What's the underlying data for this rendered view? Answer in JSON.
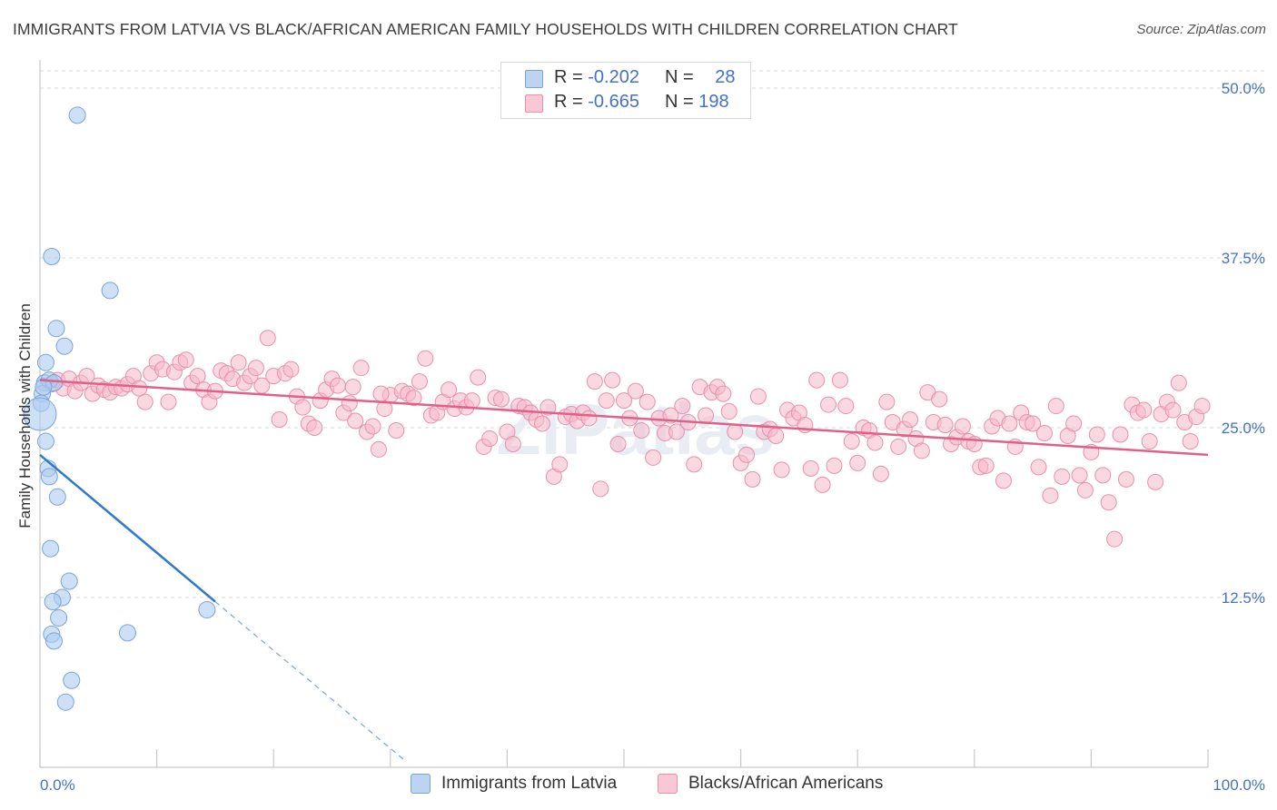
{
  "title": "IMMIGRANTS FROM LATVIA VS BLACK/AFRICAN AMERICAN FAMILY HOUSEHOLDS WITH CHILDREN CORRELATION CHART",
  "source": "Source: ZipAtlas.com",
  "watermark": "ZIPatlas",
  "legend": {
    "rows": [
      {
        "r_label": "R = ",
        "r_value": "-0.202",
        "n_label": "N = ",
        "n_value": "28"
      },
      {
        "r_label": "R = ",
        "r_value": "-0.665",
        "n_label": "N = ",
        "n_value": "198"
      }
    ]
  },
  "bottom_legend": {
    "series1": "Immigrants from Latvia",
    "series2": "Blacks/African Americans"
  },
  "colors": {
    "blue_fill": "#aecbf0",
    "blue_stroke": "#7aa3d8",
    "blue_line": "#2f78d0",
    "pink_fill": "#f6b8cb",
    "pink_stroke": "#e890ab",
    "pink_line": "#e0608a",
    "tick_text": "#4472c4",
    "grid": "#d8d8d8"
  },
  "chart_data": {
    "type": "scatter",
    "title": "IMMIGRANTS FROM LATVIA VS BLACK/AFRICAN AMERICAN FAMILY HOUSEHOLDS WITH CHILDREN CORRELATION CHART",
    "xlabel": "",
    "ylabel": "Family Households with Children",
    "xlim": [
      0,
      100
    ],
    "ylim": [
      0,
      52.5
    ],
    "y_ticks": [
      12.5,
      25.0,
      37.5,
      50.0
    ],
    "y_tick_labels": [
      "12.5%",
      "25.0%",
      "37.5%",
      "50.0%"
    ],
    "x_tick_labels": [
      "0.0%",
      "100.0%"
    ],
    "grid": true,
    "legend_position": "top-center",
    "series": [
      {
        "name": "Immigrants from Latvia",
        "r": -0.202,
        "n": 28,
        "trend": {
          "x0": 0.0,
          "y0": 23.0,
          "x1": 15.0,
          "y1": 12.2,
          "dashed_to_x": 31.3
        },
        "points": [
          [
            3.2,
            48.0
          ],
          [
            1.0,
            37.6
          ],
          [
            6.0,
            35.1
          ],
          [
            1.4,
            32.3
          ],
          [
            2.1,
            31.0
          ],
          [
            0.5,
            29.8
          ],
          [
            0.4,
            28.3
          ],
          [
            0.8,
            28.5
          ],
          [
            1.2,
            28.3
          ],
          [
            0.2,
            27.5
          ],
          [
            0.1,
            26.8
          ],
          [
            0.0,
            26.0
          ],
          [
            0.5,
            24.0
          ],
          [
            0.7,
            22.0
          ],
          [
            0.8,
            21.4
          ],
          [
            1.5,
            19.9
          ],
          [
            0.9,
            16.1
          ],
          [
            2.5,
            13.7
          ],
          [
            1.9,
            12.5
          ],
          [
            1.1,
            12.2
          ],
          [
            1.6,
            11.0
          ],
          [
            1.0,
            9.8
          ],
          [
            7.5,
            9.9
          ],
          [
            1.2,
            9.3
          ],
          [
            2.7,
            6.4
          ],
          [
            2.2,
            4.8
          ],
          [
            14.3,
            11.6
          ],
          [
            0.3,
            28.0
          ]
        ],
        "sizes": [
          9,
          9,
          9,
          9,
          9,
          9,
          9,
          9,
          9,
          9,
          9,
          18,
          9,
          9,
          9,
          9,
          9,
          9,
          9,
          9,
          9,
          9,
          9,
          9,
          9,
          9,
          9,
          9
        ]
      },
      {
        "name": "Blacks/African Americans",
        "r": -0.665,
        "n": 198,
        "trend": {
          "x0": 0.0,
          "y0": 28.5,
          "x1": 100.0,
          "y1": 23.0
        },
        "points": [
          [
            1.0,
            28.2
          ],
          [
            1.5,
            28.5
          ],
          [
            2.0,
            27.9
          ],
          [
            2.5,
            28.6
          ],
          [
            3.0,
            27.7
          ],
          [
            3.5,
            28.3
          ],
          [
            4.0,
            28.8
          ],
          [
            4.5,
            27.5
          ],
          [
            5.0,
            28.1
          ],
          [
            5.5,
            27.8
          ],
          [
            6.0,
            27.6
          ],
          [
            6.5,
            28.0
          ],
          [
            7.0,
            27.9
          ],
          [
            7.5,
            28.2
          ],
          [
            8.0,
            28.8
          ],
          [
            8.5,
            27.9
          ],
          [
            9.0,
            26.9
          ],
          [
            9.5,
            29.0
          ],
          [
            10.0,
            29.8
          ],
          [
            10.5,
            29.3
          ],
          [
            11.0,
            26.9
          ],
          [
            11.5,
            29.1
          ],
          [
            12.0,
            29.8
          ],
          [
            12.5,
            30.0
          ],
          [
            13.0,
            28.3
          ],
          [
            13.5,
            28.8
          ],
          [
            14.0,
            27.8
          ],
          [
            14.5,
            26.9
          ],
          [
            15.0,
            27.7
          ],
          [
            15.5,
            29.2
          ],
          [
            16.0,
            29.0
          ],
          [
            16.5,
            28.6
          ],
          [
            17.0,
            29.8
          ],
          [
            17.5,
            28.3
          ],
          [
            18.0,
            28.8
          ],
          [
            18.5,
            29.4
          ],
          [
            19.0,
            28.1
          ],
          [
            19.5,
            31.6
          ],
          [
            20.0,
            28.8
          ],
          [
            20.5,
            25.6
          ],
          [
            21.0,
            29.0
          ],
          [
            21.5,
            29.3
          ],
          [
            22.0,
            27.3
          ],
          [
            22.5,
            26.5
          ],
          [
            23.0,
            25.3
          ],
          [
            23.5,
            25.0
          ],
          [
            24.0,
            27.0
          ],
          [
            24.5,
            27.8
          ],
          [
            25.0,
            28.6
          ],
          [
            25.5,
            28.1
          ],
          [
            26.0,
            26.1
          ],
          [
            26.5,
            26.8
          ],
          [
            27.0,
            25.5
          ],
          [
            27.5,
            29.4
          ],
          [
            28.0,
            24.7
          ],
          [
            28.5,
            25.1
          ],
          [
            29.0,
            23.4
          ],
          [
            29.5,
            26.4
          ],
          [
            30.0,
            27.4
          ],
          [
            30.5,
            24.8
          ],
          [
            31.0,
            27.7
          ],
          [
            31.5,
            27.5
          ],
          [
            32.0,
            27.2
          ],
          [
            32.5,
            28.4
          ],
          [
            33.0,
            30.1
          ],
          [
            33.5,
            25.9
          ],
          [
            34.0,
            26.1
          ],
          [
            34.5,
            26.9
          ],
          [
            35.0,
            27.8
          ],
          [
            35.5,
            26.4
          ],
          [
            36.0,
            27.0
          ],
          [
            36.5,
            26.5
          ],
          [
            37.0,
            27.0
          ],
          [
            37.5,
            28.7
          ],
          [
            38.0,
            23.6
          ],
          [
            38.5,
            24.2
          ],
          [
            39.0,
            27.2
          ],
          [
            39.5,
            27.1
          ],
          [
            40.0,
            24.7
          ],
          [
            40.5,
            23.8
          ],
          [
            41.0,
            26.6
          ],
          [
            41.5,
            26.5
          ],
          [
            42.0,
            26.1
          ],
          [
            42.5,
            25.6
          ],
          [
            43.0,
            25.3
          ],
          [
            43.5,
            26.5
          ],
          [
            44.0,
            21.4
          ],
          [
            44.5,
            22.3
          ],
          [
            45.0,
            25.8
          ],
          [
            45.5,
            26.0
          ],
          [
            46.0,
            25.5
          ],
          [
            46.5,
            26.1
          ],
          [
            47.0,
            25.7
          ],
          [
            47.5,
            28.4
          ],
          [
            48.0,
            20.5
          ],
          [
            48.5,
            27.0
          ],
          [
            49.0,
            28.5
          ],
          [
            49.5,
            23.8
          ],
          [
            50.0,
            27.0
          ],
          [
            50.5,
            25.7
          ],
          [
            51.0,
            27.7
          ],
          [
            51.5,
            24.8
          ],
          [
            52.0,
            26.9
          ],
          [
            52.5,
            22.8
          ],
          [
            53.0,
            25.7
          ],
          [
            53.5,
            24.6
          ],
          [
            54.0,
            25.9
          ],
          [
            54.5,
            24.7
          ],
          [
            55.0,
            26.6
          ],
          [
            55.5,
            25.4
          ],
          [
            56.0,
            22.3
          ],
          [
            56.5,
            28.0
          ],
          [
            57.0,
            25.9
          ],
          [
            57.5,
            27.6
          ],
          [
            58.0,
            28.0
          ],
          [
            58.5,
            27.5
          ],
          [
            59.0,
            26.2
          ],
          [
            59.5,
            24.7
          ],
          [
            60.0,
            22.4
          ],
          [
            60.5,
            23.0
          ],
          [
            61.0,
            21.2
          ],
          [
            61.5,
            27.3
          ],
          [
            62.0,
            24.7
          ],
          [
            62.5,
            24.9
          ],
          [
            63.0,
            24.4
          ],
          [
            63.5,
            21.9
          ],
          [
            64.0,
            26.3
          ],
          [
            64.5,
            25.7
          ],
          [
            65.0,
            26.1
          ],
          [
            65.5,
            25.2
          ],
          [
            66.0,
            22.0
          ],
          [
            66.5,
            28.5
          ],
          [
            67.0,
            20.8
          ],
          [
            67.5,
            26.7
          ],
          [
            68.0,
            22.2
          ],
          [
            68.5,
            28.5
          ],
          [
            69.0,
            26.6
          ],
          [
            69.5,
            24.0
          ],
          [
            70.0,
            22.4
          ],
          [
            70.5,
            25.0
          ],
          [
            71.0,
            24.8
          ],
          [
            71.5,
            23.9
          ],
          [
            72.0,
            21.6
          ],
          [
            72.5,
            26.9
          ],
          [
            73.0,
            25.4
          ],
          [
            73.5,
            23.6
          ],
          [
            74.0,
            24.9
          ],
          [
            74.5,
            25.6
          ],
          [
            75.0,
            24.2
          ],
          [
            75.5,
            23.3
          ],
          [
            76.0,
            27.6
          ],
          [
            76.5,
            25.4
          ],
          [
            77.0,
            27.1
          ],
          [
            77.5,
            25.2
          ],
          [
            78.0,
            23.8
          ],
          [
            78.5,
            24.3
          ],
          [
            79.0,
            25.1
          ],
          [
            79.5,
            24.0
          ],
          [
            80.0,
            23.8
          ],
          [
            80.5,
            22.1
          ],
          [
            81.0,
            22.2
          ],
          [
            81.5,
            25.1
          ],
          [
            82.0,
            25.7
          ],
          [
            82.5,
            21.1
          ],
          [
            83.0,
            25.3
          ],
          [
            83.5,
            23.6
          ],
          [
            84.0,
            26.1
          ],
          [
            84.5,
            25.4
          ],
          [
            85.0,
            25.3
          ],
          [
            85.5,
            22.1
          ],
          [
            86.0,
            24.6
          ],
          [
            86.5,
            20.0
          ],
          [
            87.0,
            26.6
          ],
          [
            87.5,
            21.4
          ],
          [
            88.0,
            24.4
          ],
          [
            88.5,
            25.3
          ],
          [
            89.0,
            21.5
          ],
          [
            89.5,
            20.4
          ],
          [
            90.0,
            23.2
          ],
          [
            90.5,
            24.5
          ],
          [
            91.0,
            21.5
          ],
          [
            91.5,
            19.5
          ],
          [
            92.0,
            16.8
          ],
          [
            92.5,
            24.5
          ],
          [
            93.0,
            21.2
          ],
          [
            93.5,
            26.7
          ],
          [
            94.0,
            26.1
          ],
          [
            94.5,
            26.3
          ],
          [
            95.0,
            24.0
          ],
          [
            95.5,
            21.0
          ],
          [
            96.0,
            26.0
          ],
          [
            96.5,
            26.9
          ],
          [
            97.0,
            26.3
          ],
          [
            97.5,
            28.3
          ],
          [
            98.0,
            25.4
          ],
          [
            98.5,
            24.0
          ],
          [
            99.0,
            25.8
          ],
          [
            99.5,
            26.6
          ],
          [
            26.8,
            28.0
          ],
          [
            29.2,
            27.5
          ]
        ]
      }
    ]
  }
}
